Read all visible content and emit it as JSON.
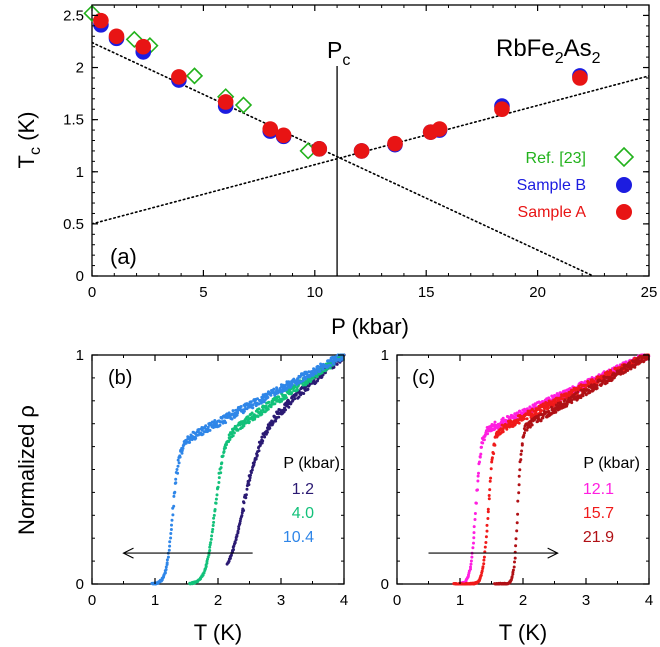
{
  "chart_data": [
    {
      "panel": "(a)",
      "type": "scatter",
      "title": "RbFe₂As₂",
      "title_parts": {
        "a": "RbFe",
        "s1": "2",
        "b": "As",
        "s2": "2"
      },
      "xlabel": "P (kbar)",
      "ylabel": "T_c (K)",
      "ylabel_parts": {
        "main": "T",
        "sub": "c",
        "rest": " (K)"
      },
      "xlim": [
        0,
        25
      ],
      "ylim": [
        0,
        2.6
      ],
      "xticks": [
        0,
        5,
        10,
        15,
        20,
        25
      ],
      "yticks": [
        0,
        0.5,
        1,
        1.5,
        2,
        2.5
      ],
      "grid": false,
      "legend_position": "right",
      "annotation": {
        "main": "P",
        "sub": "c",
        "x": 11.0
      },
      "series": [
        {
          "name": "Ref. [23]",
          "color": "#22b21c",
          "marker": "diamond-open",
          "points": [
            [
              0.0,
              2.52
            ],
            [
              1.9,
              2.27
            ],
            [
              2.6,
              2.21
            ],
            [
              4.6,
              1.92
            ],
            [
              6.0,
              1.72
            ],
            [
              6.8,
              1.64
            ],
            [
              9.7,
              1.2
            ]
          ]
        },
        {
          "name": "Sample B",
          "color": "#1c1ce0",
          "marker": "circle",
          "points": [
            [
              0.4,
              2.41
            ],
            [
              1.1,
              2.28
            ],
            [
              2.3,
              2.15
            ],
            [
              3.9,
              1.88
            ],
            [
              6.0,
              1.63
            ],
            [
              8.0,
              1.39
            ],
            [
              8.6,
              1.34
            ],
            [
              10.2,
              1.22
            ],
            [
              12.1,
              1.2
            ],
            [
              13.6,
              1.26
            ],
            [
              15.2,
              1.38
            ],
            [
              15.6,
              1.4
            ],
            [
              18.4,
              1.63
            ],
            [
              21.9,
              1.92
            ]
          ]
        },
        {
          "name": "Sample A",
          "color": "#e81414",
          "marker": "circle",
          "points": [
            [
              0.4,
              2.45
            ],
            [
              1.1,
              2.3
            ],
            [
              2.3,
              2.2
            ],
            [
              3.9,
              1.91
            ],
            [
              6.0,
              1.67
            ],
            [
              8.0,
              1.41
            ],
            [
              8.6,
              1.35
            ],
            [
              10.2,
              1.22
            ],
            [
              12.1,
              1.2
            ],
            [
              13.6,
              1.27
            ],
            [
              15.2,
              1.38
            ],
            [
              15.6,
              1.41
            ],
            [
              18.4,
              1.6
            ],
            [
              21.9,
              1.9
            ]
          ]
        }
      ],
      "fit_lines": [
        {
          "from": [
            0,
            2.24
          ],
          "to": [
            22.5,
            0.0
          ],
          "style": "dotted"
        },
        {
          "from": [
            0,
            0.5
          ],
          "to": [
            25,
            1.92
          ],
          "style": "dotted"
        }
      ]
    },
    {
      "panel": "(b)",
      "type": "scatter",
      "xlabel": "T (K)",
      "ylabel": "Normalized ρ",
      "xlim": [
        0,
        4
      ],
      "ylim": [
        0,
        1
      ],
      "xticks": [
        0,
        1,
        2,
        3,
        4
      ],
      "yticks": [
        0,
        1
      ],
      "legend_title": "P (kbar)",
      "arrow": {
        "from": 2.55,
        "to": 0.5,
        "y": 0.135
      },
      "series": [
        {
          "name": "1.2",
          "color": "#2b1a73",
          "tc": 2.4,
          "width": 0.13,
          "t0": 2.15,
          "norm_mid": 0.67
        },
        {
          "name": "4.0",
          "color": "#12c17a",
          "tc": 1.95,
          "width": 0.07,
          "t0": 1.55,
          "norm_mid": 0.64
        },
        {
          "name": "10.4",
          "color": "#2f86e8",
          "tc": 1.28,
          "width": 0.05,
          "t0": 0.95,
          "norm_mid": 0.61
        }
      ]
    },
    {
      "panel": "(c)",
      "type": "scatter",
      "xlabel": "T (K)",
      "xlim": [
        0,
        4
      ],
      "ylim": [
        0,
        1
      ],
      "xticks": [
        0,
        1,
        2,
        3,
        4
      ],
      "yticks": [
        0,
        1
      ],
      "legend_title": "P (kbar)",
      "arrow": {
        "from": 0.5,
        "to": 2.55,
        "y": 0.135
      },
      "series": [
        {
          "name": "12.1",
          "color": "#ff1ee0",
          "tc": 1.25,
          "width": 0.04,
          "t0": 1.0,
          "norm_mid": 0.66
        },
        {
          "name": "15.7",
          "color": "#f01a1a",
          "tc": 1.45,
          "width": 0.04,
          "t0": 0.9,
          "norm_mid": 0.66
        },
        {
          "name": "21.9",
          "color": "#b01015",
          "tc": 1.92,
          "width": 0.03,
          "t0": 1.55,
          "norm_mid": 0.68
        }
      ]
    }
  ]
}
